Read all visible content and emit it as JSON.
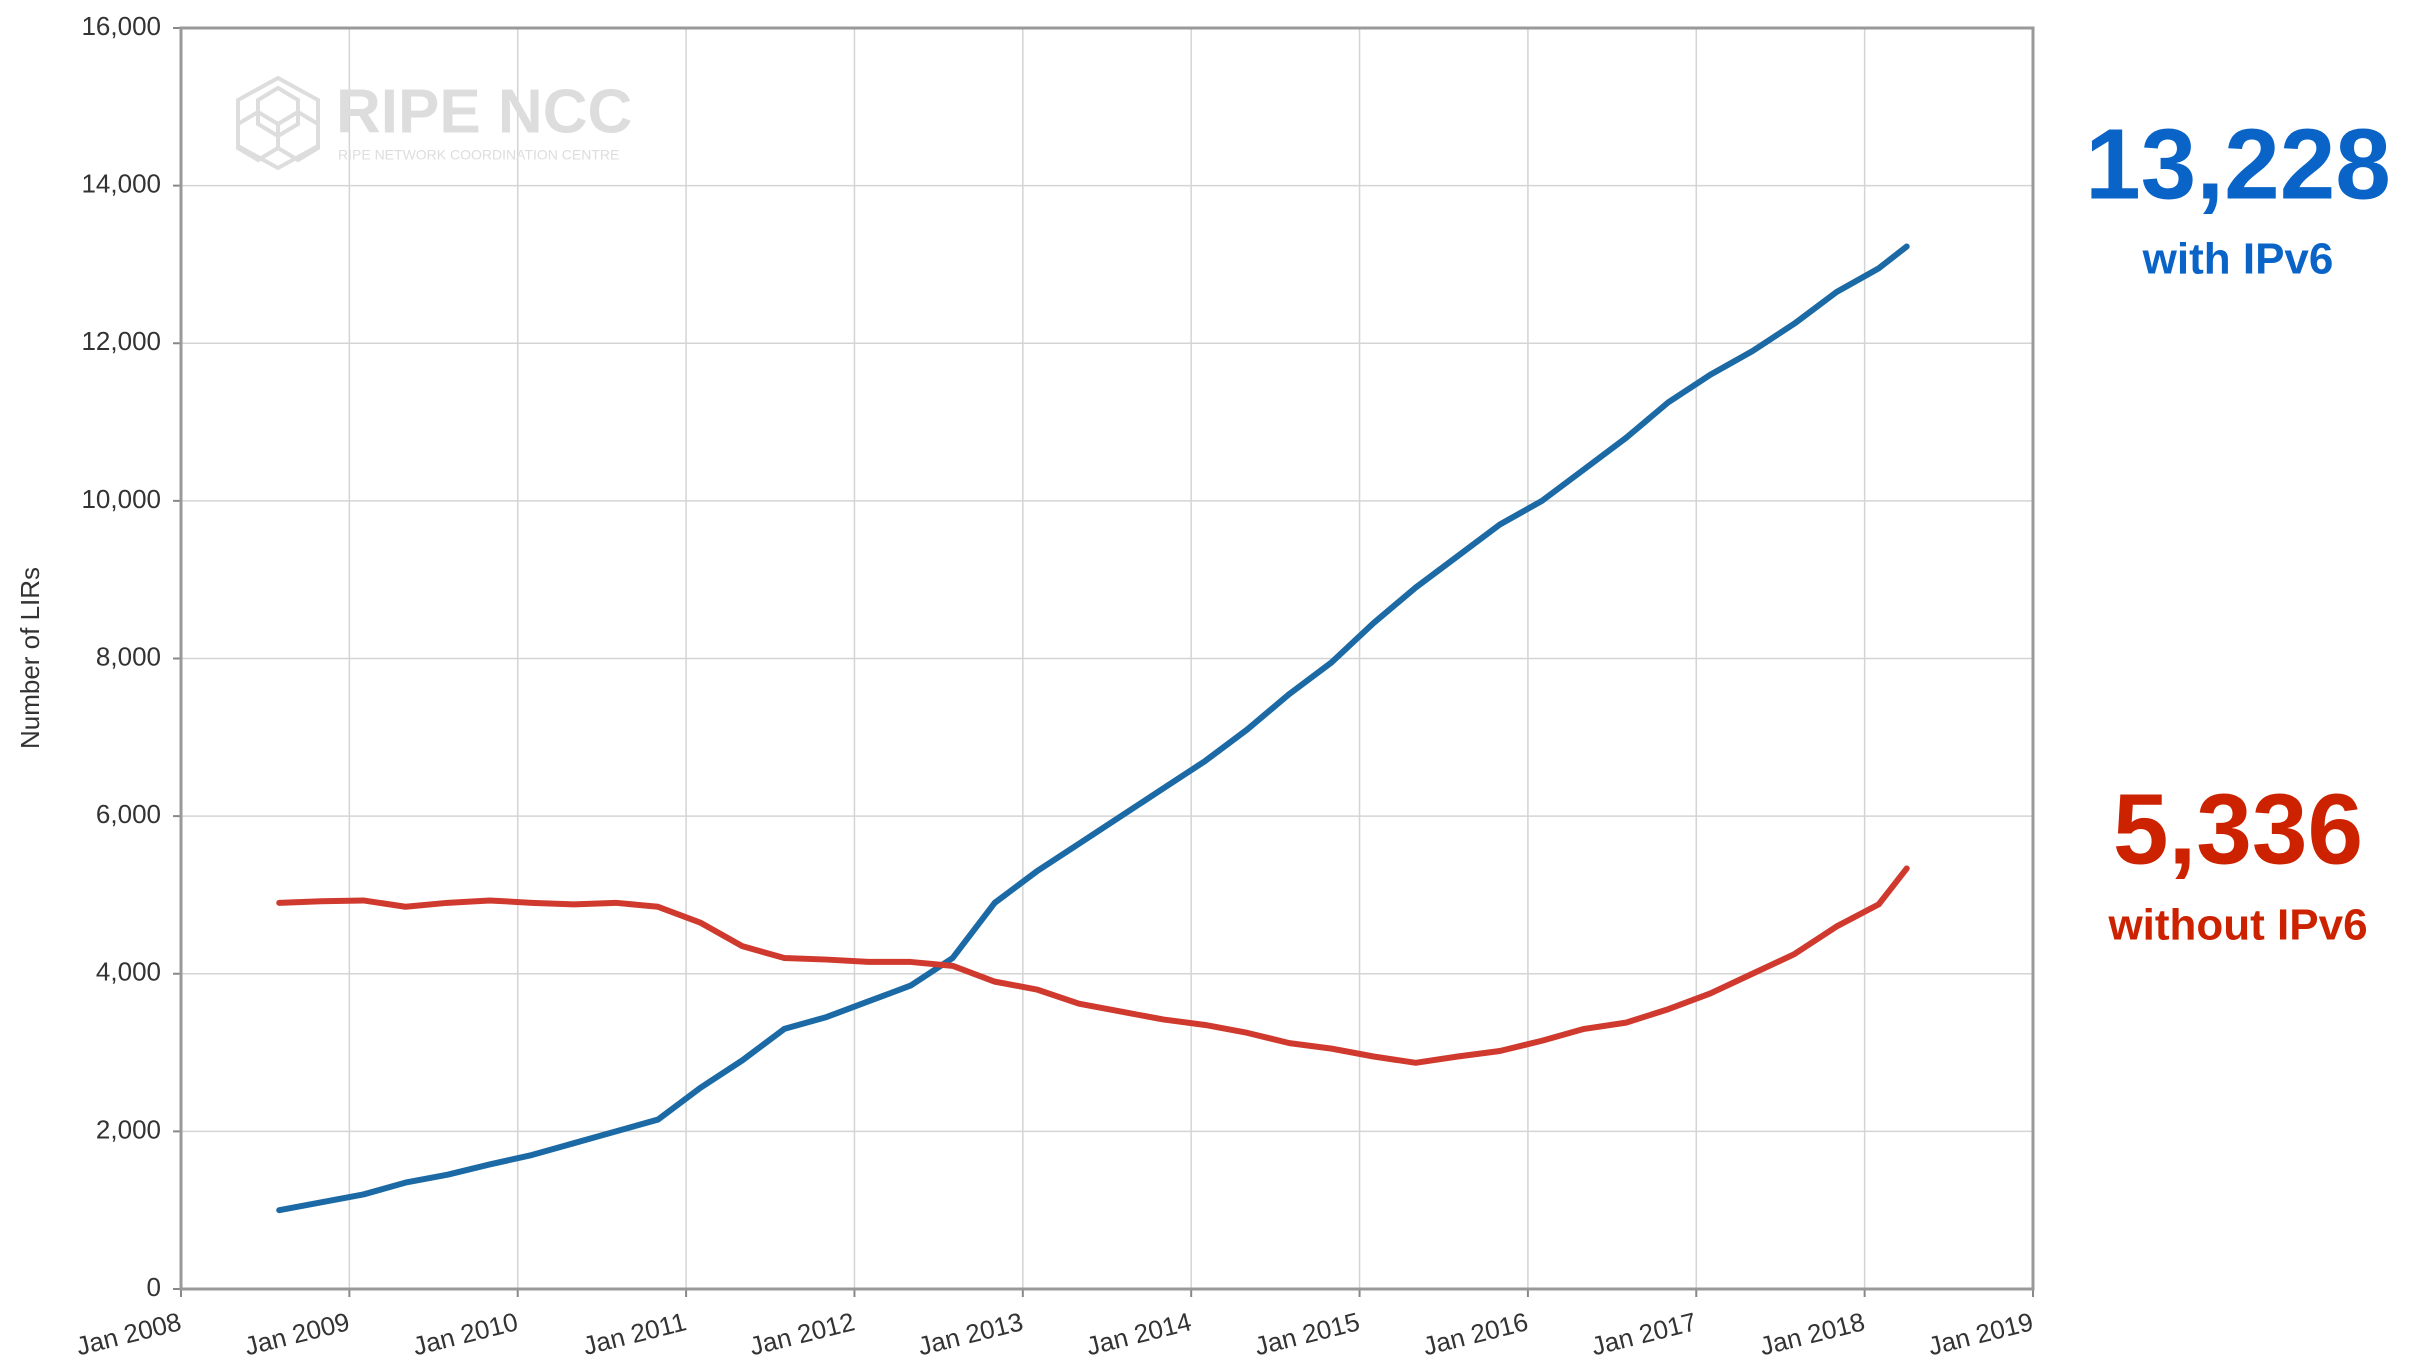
{
  "chart_data": {
    "type": "line",
    "y_axis_label": "Number of LIRs",
    "watermark": "RIPE NCC",
    "watermark_subtitle": "RIPE NETWORK COORDINATION CENTRE",
    "x": [
      "2008-08",
      "2008-11",
      "2009-02",
      "2009-05",
      "2009-08",
      "2009-11",
      "2010-02",
      "2010-05",
      "2010-08",
      "2010-11",
      "2011-02",
      "2011-05",
      "2011-08",
      "2011-11",
      "2012-02",
      "2012-05",
      "2012-08",
      "2012-11",
      "2013-02",
      "2013-05",
      "2013-08",
      "2013-11",
      "2014-02",
      "2014-05",
      "2014-08",
      "2014-11",
      "2015-02",
      "2015-05",
      "2015-08",
      "2015-11",
      "2016-02",
      "2016-05",
      "2016-08",
      "2016-11",
      "2017-02",
      "2017-05",
      "2017-08",
      "2017-11",
      "2018-02",
      "2018-04"
    ],
    "series": [
      {
        "name": "with IPv6",
        "color": "#1b6aa5",
        "values": [
          1000,
          1100,
          1200,
          1350,
          1450,
          1580,
          1700,
          1850,
          2000,
          2150,
          2550,
          2900,
          3300,
          3450,
          3650,
          3850,
          4200,
          4900,
          5300,
          5650,
          6000,
          6350,
          6700,
          7100,
          7550,
          7950,
          8450,
          8900,
          9300,
          9700,
          10000,
          10400,
          10800,
          11250,
          11600,
          11900,
          12250,
          12650,
          12950,
          13228
        ]
      },
      {
        "name": "without IPv6",
        "color": "#d03a2e",
        "values": [
          4900,
          4920,
          4930,
          4850,
          4900,
          4930,
          4900,
          4880,
          4900,
          4850,
          4650,
          4350,
          4200,
          4180,
          4150,
          4150,
          4100,
          3900,
          3800,
          3620,
          3520,
          3420,
          3350,
          3250,
          3120,
          3050,
          2950,
          2870,
          2950,
          3020,
          3150,
          3300,
          3380,
          3550,
          3750,
          4000,
          4250,
          4600,
          4880,
          5336
        ]
      }
    ],
    "annotations": [
      {
        "text": "13,228",
        "color": "#0a64c8"
      },
      {
        "text": "with IPv6",
        "color": "#0a64c8"
      },
      {
        "text": "5,336",
        "color": "#cc2200"
      },
      {
        "text": "without IPv6",
        "color": "#cc2200"
      }
    ],
    "xlim": [
      "2008-01",
      "2019-01"
    ],
    "xticks": [
      {
        "value": "2008-01",
        "label": "Jan 2008"
      },
      {
        "value": "2009-01",
        "label": "Jan 2009"
      },
      {
        "value": "2010-01",
        "label": "Jan 2010"
      },
      {
        "value": "2011-01",
        "label": "Jan 2011"
      },
      {
        "value": "2012-01",
        "label": "Jan 2012"
      },
      {
        "value": "2013-01",
        "label": "Jan 2013"
      },
      {
        "value": "2014-01",
        "label": "Jan 2014"
      },
      {
        "value": "2015-01",
        "label": "Jan 2015"
      },
      {
        "value": "2016-01",
        "label": "Jan 2016"
      },
      {
        "value": "2017-01",
        "label": "Jan 2017"
      },
      {
        "value": "2018-01",
        "label": "Jan 2018"
      },
      {
        "value": "2019-01",
        "label": "Jan 2019"
      }
    ],
    "ylim": [
      0,
      16000
    ],
    "yticks": [
      0,
      {
        "value": 2000,
        "label": "2,000"
      },
      {
        "value": 4000,
        "label": "4,000"
      },
      {
        "value": 6000,
        "label": "6,000"
      },
      {
        "value": 8000,
        "label": "8,000"
      },
      {
        "value": 10000,
        "label": "10,000"
      },
      {
        "value": 12000,
        "label": "12,000"
      },
      {
        "value": 14000,
        "label": "14,000"
      },
      {
        "value": 16000,
        "label": "16,000"
      }
    ],
    "grid": true
  }
}
